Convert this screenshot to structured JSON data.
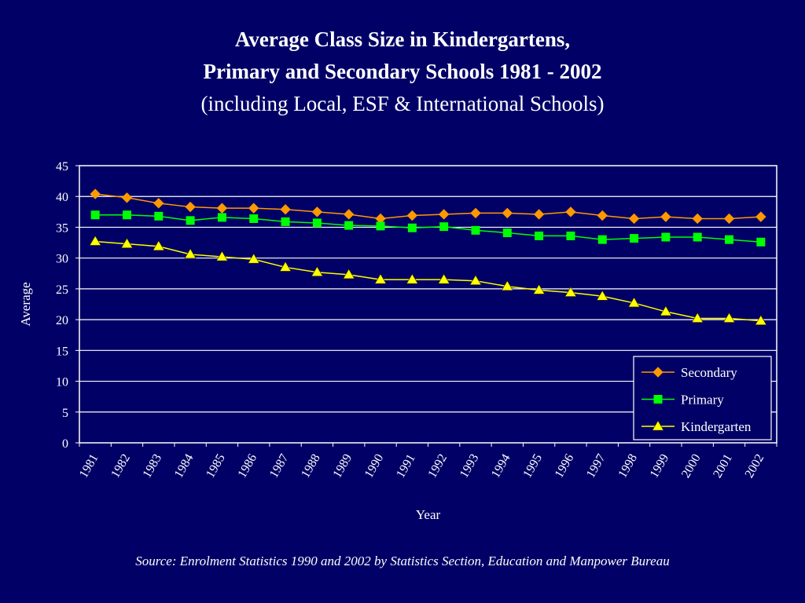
{
  "chart_data": {
    "type": "line",
    "title": "Average Class Size in Kindergartens,",
    "title_line2": "Primary and Secondary Schools 1981 - 2002",
    "subtitle": "(including Local, ESF & International Schools)",
    "xlabel": "Year",
    "ylabel": "Average",
    "ylim": [
      0,
      45
    ],
    "yticks": [
      "0",
      "5",
      "10",
      "15",
      "20",
      "25",
      "30",
      "35",
      "40",
      "45"
    ],
    "x": [
      "1981",
      "1982",
      "1983",
      "1984",
      "1985",
      "1986",
      "1987",
      "1988",
      "1989",
      "1990",
      "1991",
      "1992",
      "1993",
      "1994",
      "1995",
      "1996",
      "1997",
      "1998",
      "1999",
      "2000",
      "2001",
      "2002"
    ],
    "grid": true,
    "legend_position": "bottom-right",
    "series": [
      {
        "name": "Secondary",
        "marker": "diamond",
        "color": "#FF9900",
        "values": [
          40.4,
          39.8,
          38.9,
          38.3,
          38.1,
          38.1,
          37.9,
          37.5,
          37.1,
          36.4,
          36.9,
          37.1,
          37.3,
          37.3,
          37.1,
          37.5,
          36.9,
          36.4,
          36.7,
          36.4,
          36.4,
          36.7
        ]
      },
      {
        "name": "Primary",
        "marker": "square",
        "color": "#00FF00",
        "values": [
          37.0,
          37.0,
          36.8,
          36.1,
          36.6,
          36.4,
          35.9,
          35.7,
          35.3,
          35.2,
          34.9,
          35.1,
          34.5,
          34.1,
          33.6,
          33.6,
          33.0,
          33.2,
          33.4,
          33.4,
          33.0,
          32.6
        ]
      },
      {
        "name": "Kindergarten",
        "marker": "triangle",
        "color": "#FFFF00",
        "values": [
          32.7,
          32.3,
          31.9,
          30.6,
          30.2,
          29.8,
          28.5,
          27.7,
          27.3,
          26.5,
          26.5,
          26.5,
          26.3,
          25.4,
          24.8,
          24.4,
          23.8,
          22.7,
          21.3,
          20.2,
          20.2,
          19.8
        ]
      }
    ]
  },
  "source": "Source: Enrolment Statistics 1990 and 2002 by Statistics Section, Education and Manpower Bureau"
}
